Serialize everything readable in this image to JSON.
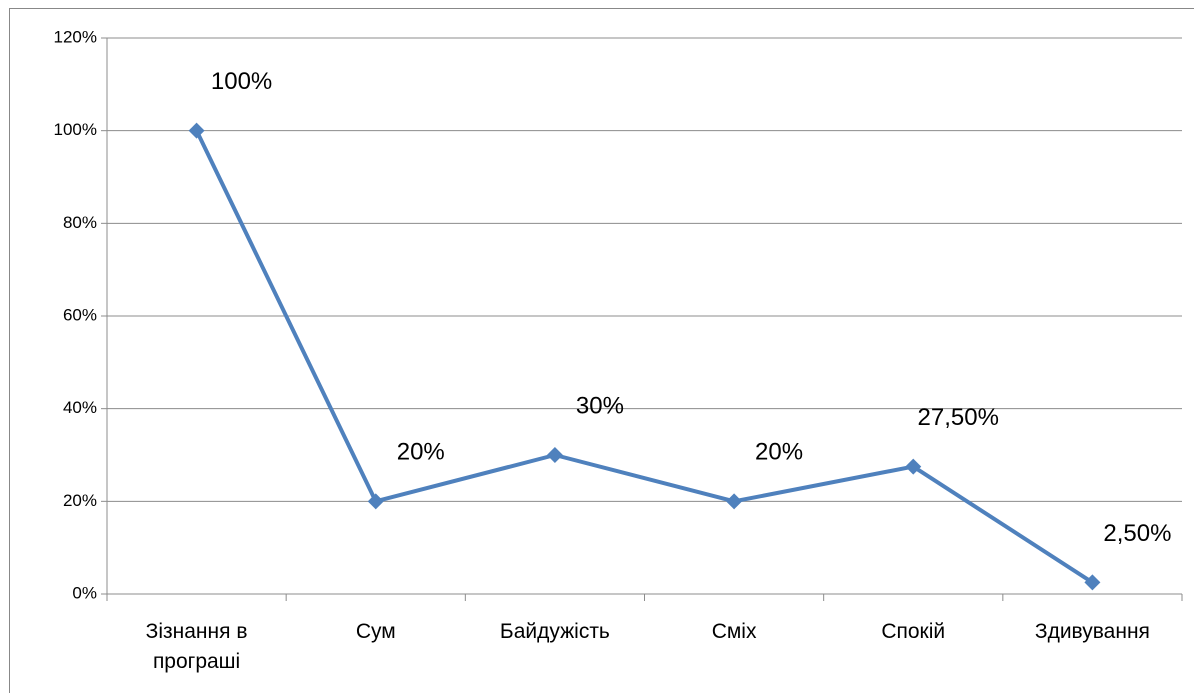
{
  "chart_data": {
    "type": "line",
    "categories": [
      "Зізнання в програші",
      "Сум",
      "Байдужість",
      "Сміх",
      "Спокій",
      "Здивування"
    ],
    "series": [
      {
        "color": "#4f81bd",
        "values": [
          100,
          20,
          30,
          20,
          27.5,
          2.5
        ],
        "value_labels": [
          "100%",
          "20%",
          "30%",
          "20%",
          "27,50%",
          "2,50%"
        ]
      }
    ],
    "ylim": [
      0,
      120
    ],
    "yticks": [
      {
        "value": 0,
        "label": "0%"
      },
      {
        "value": 20,
        "label": "20%"
      },
      {
        "value": 40,
        "label": "40%"
      },
      {
        "value": 60,
        "label": "60%"
      },
      {
        "value": 80,
        "label": "80%"
      },
      {
        "value": 100,
        "label": "100%"
      },
      {
        "value": 120,
        "label": "120%"
      }
    ],
    "grid": true
  }
}
